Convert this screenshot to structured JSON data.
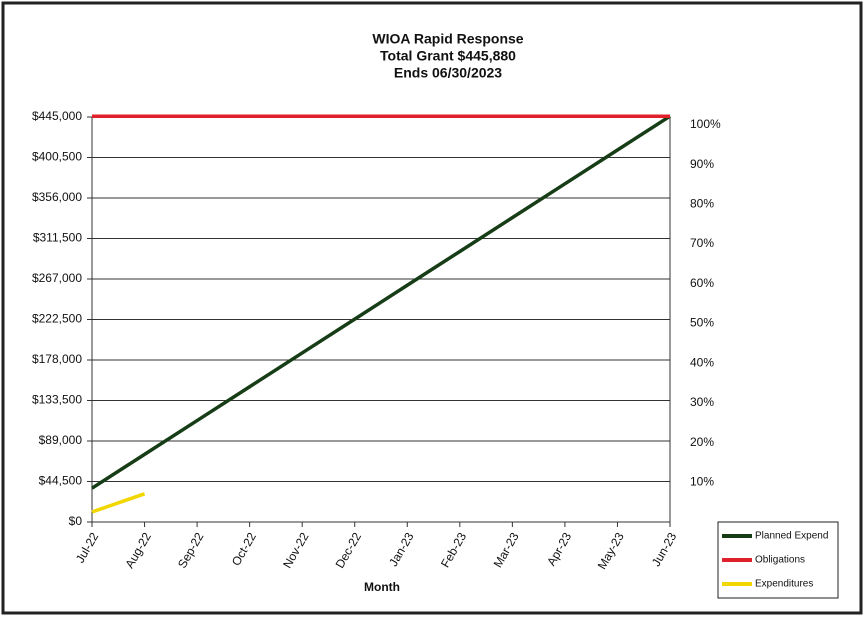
{
  "chart_data": {
    "type": "line",
    "title": "WIOA Rapid Response",
    "subtitle": "Total Grant  $445,880",
    "subtitle2": "Ends 06/30/2023",
    "x_label": "Month",
    "categories": [
      "Jul-22",
      "Aug-22",
      "Sep-22",
      "Oct-22",
      "Nov-22",
      "Dec-22",
      "Jan-23",
      "Feb-23",
      "Mar-23",
      "Apr-23",
      "May-23",
      "Jun-23"
    ],
    "series": [
      {
        "name": "Planned Expend",
        "color": "#173d17",
        "values": [
          37157,
          74313,
          111470,
          148627,
          185783,
          222940,
          260097,
          297253,
          334410,
          371567,
          408723,
          445880
        ]
      },
      {
        "name": "Obligations",
        "color": "#e0202a",
        "values": [
          445880,
          445880,
          445880,
          445880,
          445880,
          445880,
          445880,
          445880,
          445880,
          445880,
          445880,
          445880
        ]
      },
      {
        "name": "Expenditures",
        "color": "#f2d600",
        "values": [
          11000,
          31000,
          null,
          null,
          null,
          null,
          null,
          null,
          null,
          null,
          null,
          null
        ]
      }
    ],
    "ylim": [
      0,
      445000
    ],
    "yticks": [
      {
        "value": 0,
        "label": "$0"
      },
      {
        "value": 44500,
        "label": "$44,500"
      },
      {
        "value": 89000,
        "label": "$89,000"
      },
      {
        "value": 133500,
        "label": "$133,500"
      },
      {
        "value": 178000,
        "label": "$178,000"
      },
      {
        "value": 222500,
        "label": "$222,500"
      },
      {
        "value": 267000,
        "label": "$267,000"
      },
      {
        "value": 311500,
        "label": "$311,500"
      },
      {
        "value": 356000,
        "label": "$356,000"
      },
      {
        "value": 400500,
        "label": "$400,500"
      },
      {
        "value": 445000,
        "label": "$445,000"
      }
    ],
    "y2lim": [
      0,
      102
    ],
    "y2ticks": [
      {
        "value": 10,
        "label": "10%"
      },
      {
        "value": 20,
        "label": "20%"
      },
      {
        "value": 30,
        "label": "30%"
      },
      {
        "value": 40,
        "label": "40%"
      },
      {
        "value": 50,
        "label": "50%"
      },
      {
        "value": 60,
        "label": "60%"
      },
      {
        "value": 70,
        "label": "70%"
      },
      {
        "value": 80,
        "label": "80%"
      },
      {
        "value": 90,
        "label": "90%"
      },
      {
        "value": 100,
        "label": "100%"
      }
    ],
    "grid": true,
    "legend": "lower right"
  }
}
